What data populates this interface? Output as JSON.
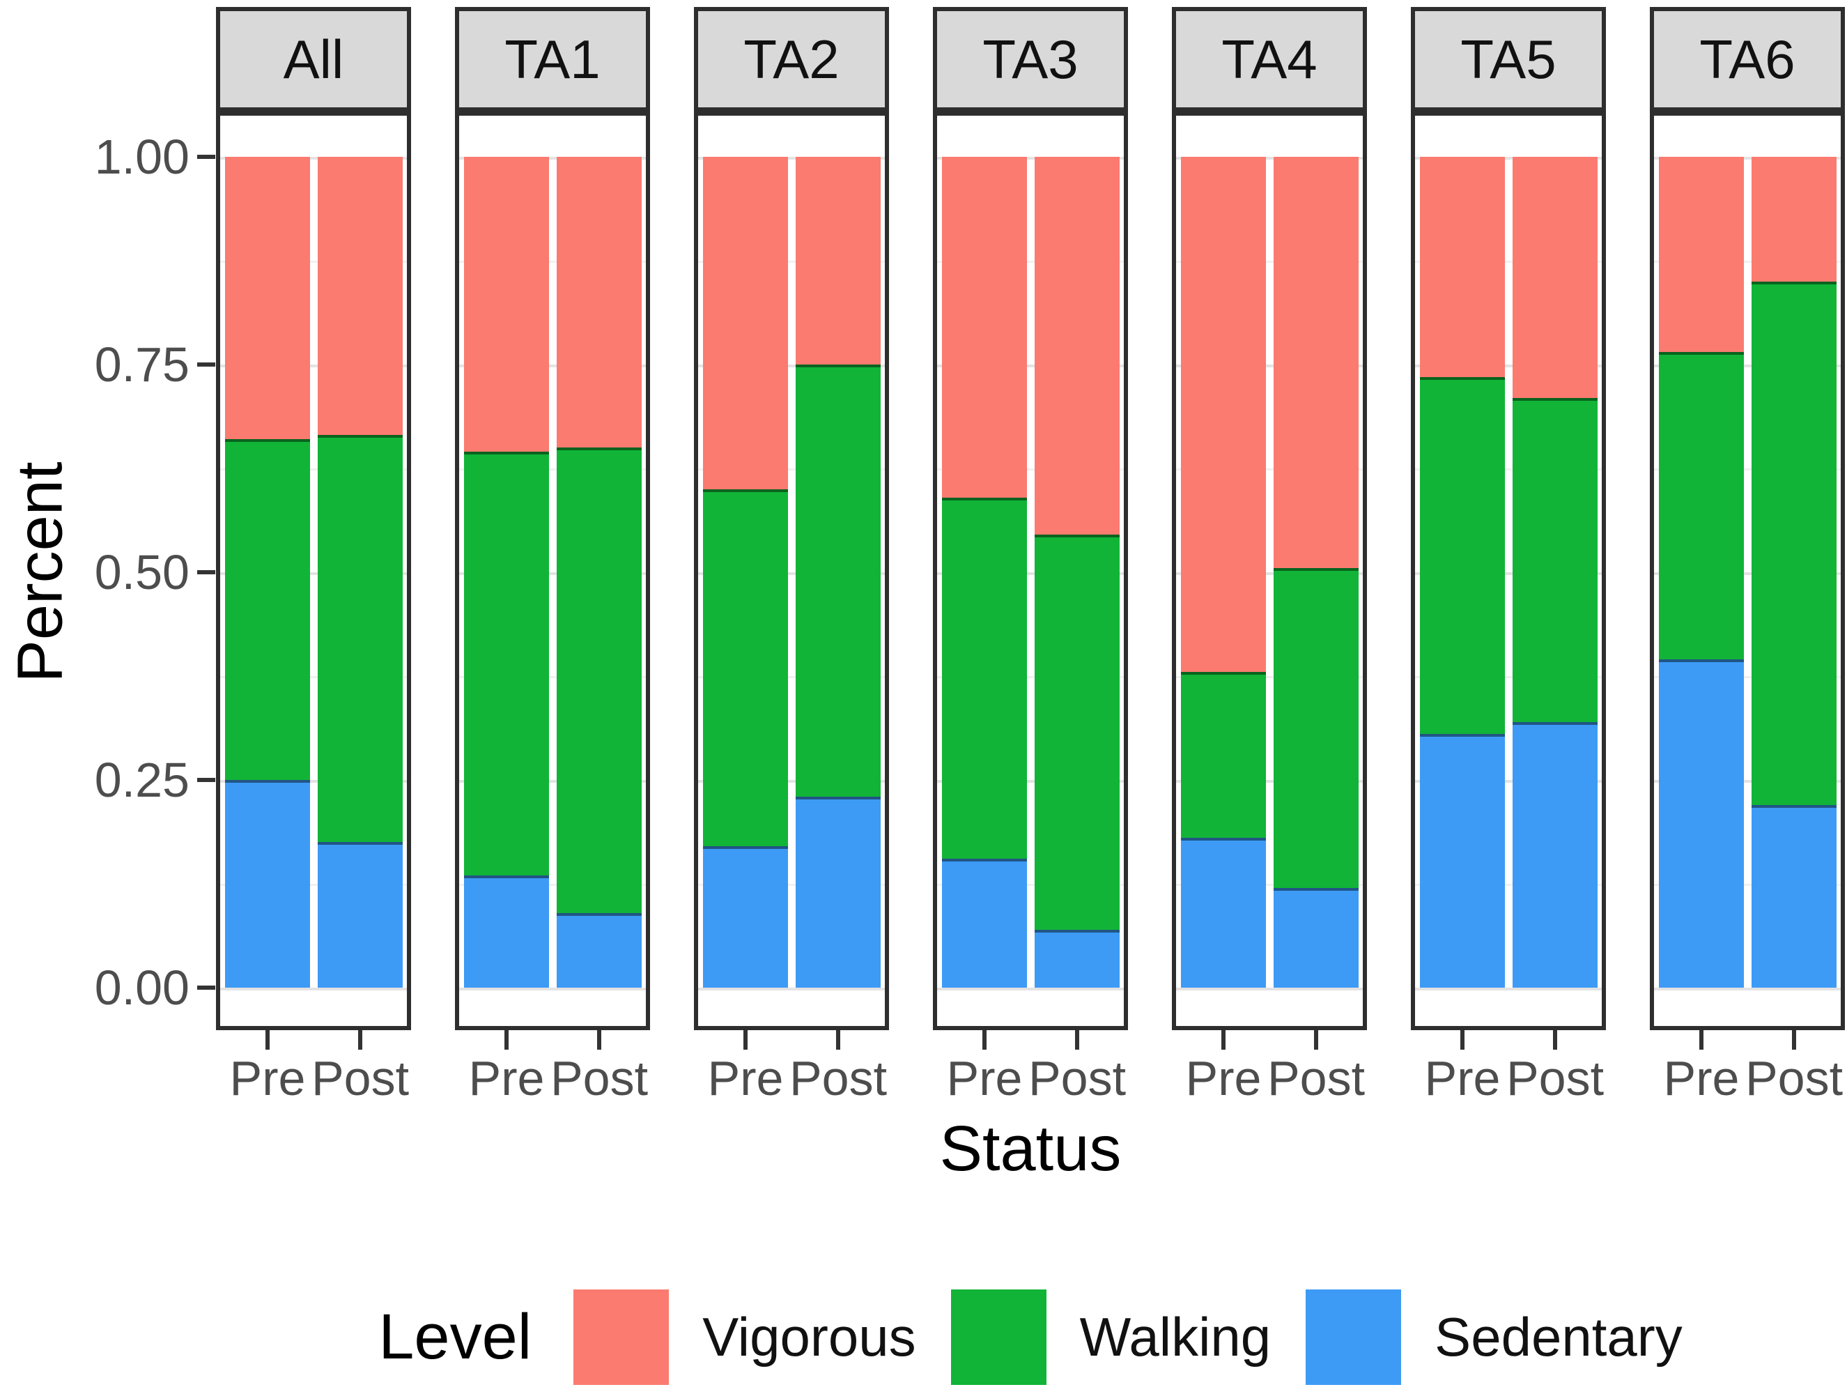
{
  "chart_data": {
    "type": "bar",
    "variant": "stacked-percent-faceted",
    "xlabel": "Status",
    "ylabel": "Percent",
    "ylim": [
      0,
      1
    ],
    "grid": "on",
    "y_ticks": [
      {
        "label": "1.00",
        "value": 1.0
      },
      {
        "label": "0.75",
        "value": 0.75
      },
      {
        "label": "0.50",
        "value": 0.5
      },
      {
        "label": "0.25",
        "value": 0.25
      },
      {
        "label": "0.00",
        "value": 0.0
      }
    ],
    "y_minor_gridlines": [
      0.125,
      0.375,
      0.625,
      0.875
    ],
    "x_categories": [
      "Pre",
      "Post"
    ],
    "series_top_to_bottom": [
      "Vigorous",
      "Walking",
      "Sedentary"
    ],
    "series_colors": {
      "Vigorous": "#fb7b70",
      "Walking": "#11b437",
      "Sedentary": "#3d9bf5"
    },
    "legend": {
      "title": "Level",
      "position": "bottom",
      "entries": [
        {
          "label": "Vigorous",
          "color": "#fb7b70"
        },
        {
          "label": "Walking",
          "color": "#11b437"
        },
        {
          "label": "Sedentary",
          "color": "#3d9bf5"
        }
      ]
    },
    "facets": [
      {
        "label": "All",
        "bars": [
          {
            "status": "Pre",
            "Sedentary": 0.25,
            "Walking": 0.41,
            "Vigorous": 0.34
          },
          {
            "status": "Post",
            "Sedentary": 0.175,
            "Walking": 0.49,
            "Vigorous": 0.335
          }
        ]
      },
      {
        "label": "TA1",
        "bars": [
          {
            "status": "Pre",
            "Sedentary": 0.135,
            "Walking": 0.51,
            "Vigorous": 0.355
          },
          {
            "status": "Post",
            "Sedentary": 0.09,
            "Walking": 0.56,
            "Vigorous": 0.35
          }
        ]
      },
      {
        "label": "TA2",
        "bars": [
          {
            "status": "Pre",
            "Sedentary": 0.17,
            "Walking": 0.43,
            "Vigorous": 0.4
          },
          {
            "status": "Post",
            "Sedentary": 0.23,
            "Walking": 0.52,
            "Vigorous": 0.25
          }
        ]
      },
      {
        "label": "TA3",
        "bars": [
          {
            "status": "Pre",
            "Sedentary": 0.155,
            "Walking": 0.435,
            "Vigorous": 0.41
          },
          {
            "status": "Post",
            "Sedentary": 0.07,
            "Walking": 0.475,
            "Vigorous": 0.455
          }
        ]
      },
      {
        "label": "TA4",
        "bars": [
          {
            "status": "Pre",
            "Sedentary": 0.18,
            "Walking": 0.2,
            "Vigorous": 0.62
          },
          {
            "status": "Post",
            "Sedentary": 0.12,
            "Walking": 0.385,
            "Vigorous": 0.495
          }
        ]
      },
      {
        "label": "TA5",
        "bars": [
          {
            "status": "Pre",
            "Sedentary": 0.305,
            "Walking": 0.43,
            "Vigorous": 0.265
          },
          {
            "status": "Post",
            "Sedentary": 0.32,
            "Walking": 0.39,
            "Vigorous": 0.29
          }
        ]
      },
      {
        "label": "TA6",
        "bars": [
          {
            "status": "Pre",
            "Sedentary": 0.395,
            "Walking": 0.37,
            "Vigorous": 0.235
          },
          {
            "status": "Post",
            "Sedentary": 0.22,
            "Walking": 0.63,
            "Vigorous": 0.15
          }
        ]
      }
    ]
  }
}
